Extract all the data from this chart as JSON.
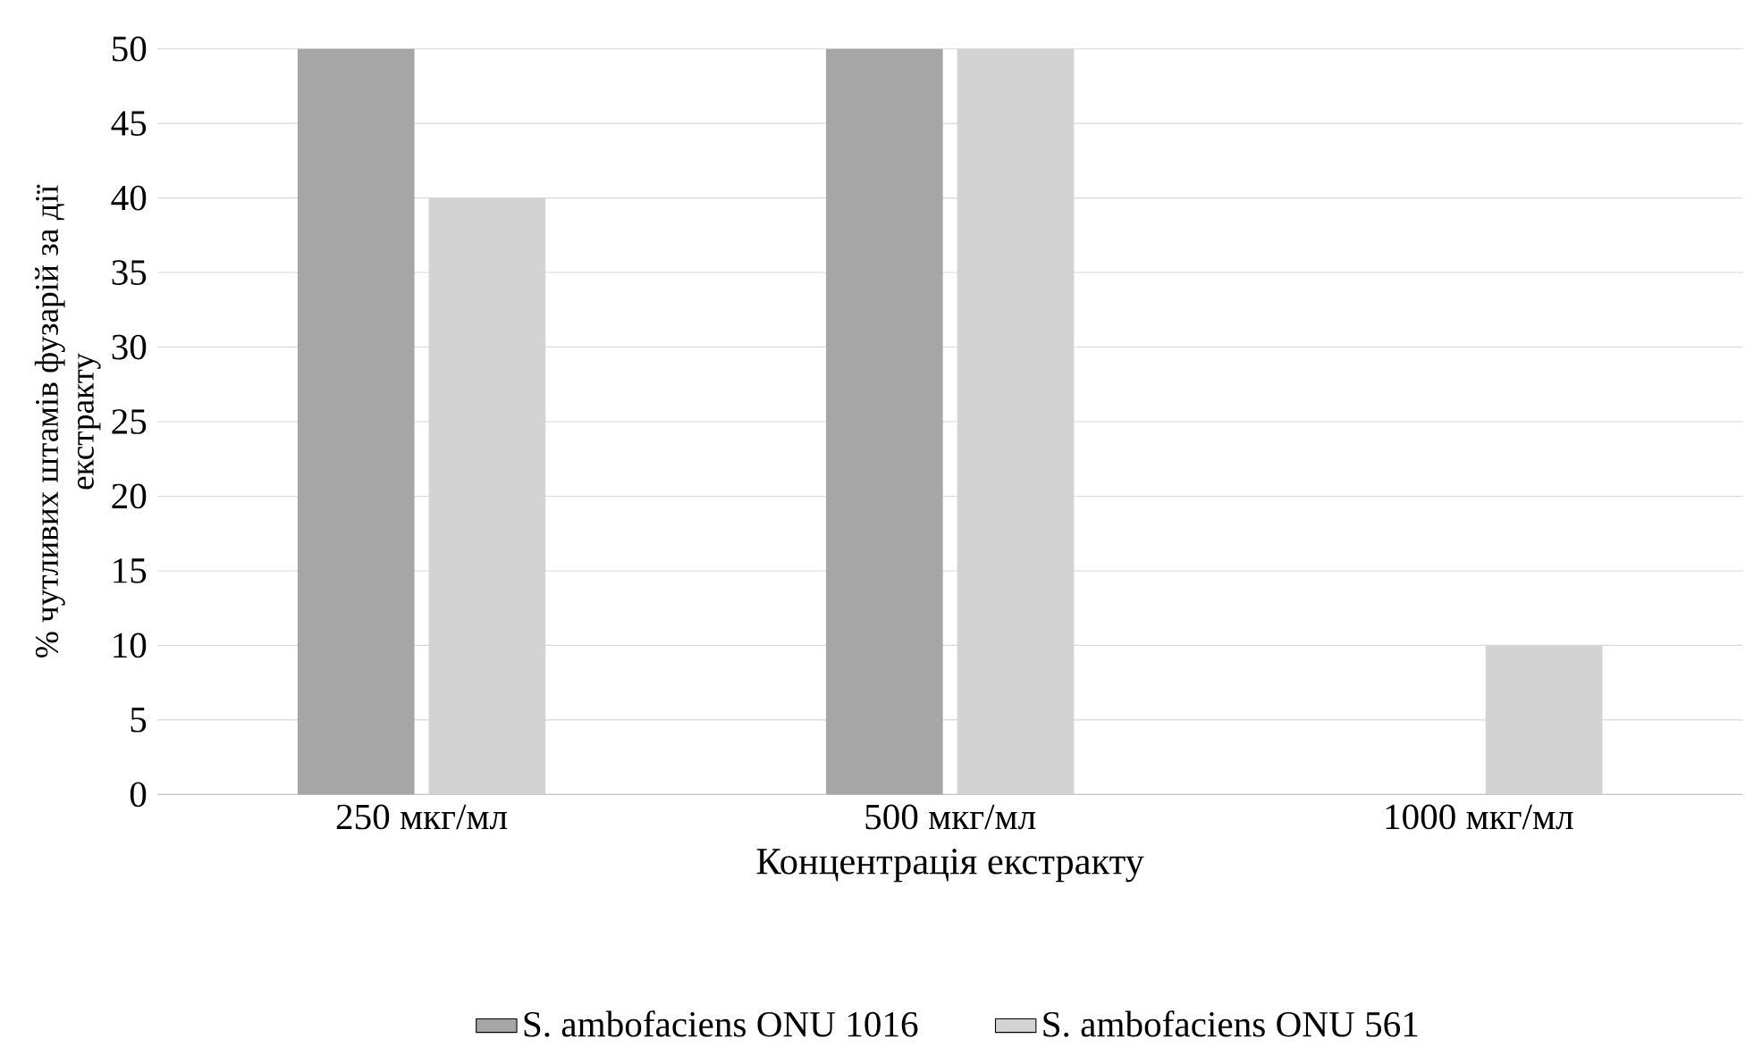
{
  "chart_data": {
    "type": "bar",
    "xlabel": "Концентрація екстракту",
    "ylabel": "% чутливих штамів фузарій за дії екстракту",
    "categories": [
      "250 мкг/мл",
      "500 мкг/мл",
      "1000 мкг/мл"
    ],
    "series": [
      {
        "name": "S. ambofaciens ONU 1016",
        "color": "#a6a6a6",
        "values": [
          50,
          50,
          0
        ]
      },
      {
        "name": "S. ambofaciens ONU 561",
        "color": "#d3d3d3",
        "values": [
          40,
          50,
          10
        ]
      }
    ],
    "ylim": [
      0,
      50
    ],
    "yticks": [
      0,
      5,
      10,
      15,
      20,
      25,
      30,
      35,
      40,
      45,
      50
    ],
    "grid": "y",
    "legend": "bottom"
  }
}
